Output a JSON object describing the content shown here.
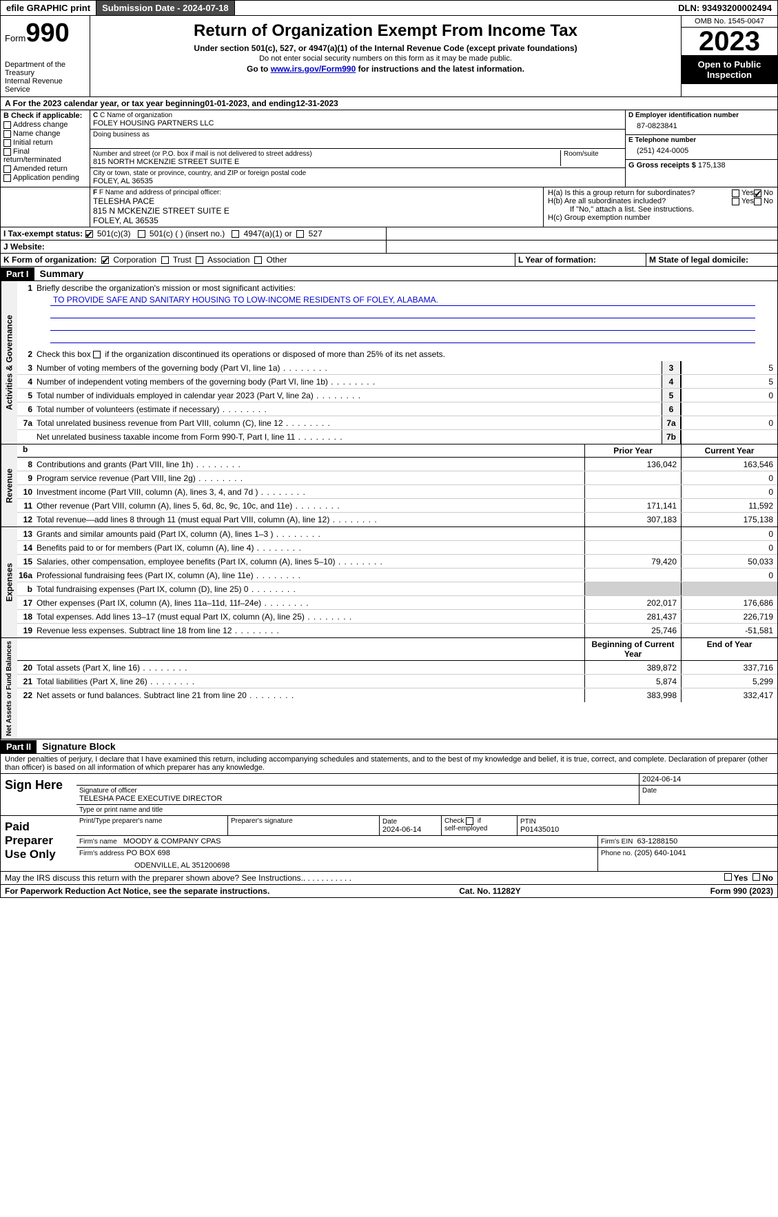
{
  "topbar": {
    "efile": "efile GRAPHIC print",
    "submission_label": "Submission Date - 2024-07-18",
    "dln_label": "DLN: 93493200002494"
  },
  "header": {
    "form_word": "Form",
    "form_num": "990",
    "dept": "Department of the Treasury",
    "irs": "Internal Revenue Service",
    "title": "Return of Organization Exempt From Income Tax",
    "sub1": "Under section 501(c), 527, or 4947(a)(1) of the Internal Revenue Code (except private foundations)",
    "sub2": "Do not enter social security numbers on this form as it may be made public.",
    "sub3_pre": "Go to ",
    "sub3_link": "www.irs.gov/Form990",
    "sub3_post": " for instructions and the latest information.",
    "omb": "OMB No. 1545-0047",
    "year": "2023",
    "open": "Open to Public Inspection"
  },
  "period": {
    "text_a": "A For the 2023 calendar year, or tax year beginning ",
    "begin": "01-01-2023",
    "mid": " , and ending ",
    "end": "12-31-2023"
  },
  "secB": {
    "title": "B Check if applicable:",
    "opts": [
      "Address change",
      "Name change",
      "Initial return",
      "Final return/terminated",
      "Amended return",
      "Application pending"
    ]
  },
  "secC": {
    "name_lbl": "C Name of organization",
    "name": "FOLEY HOUSING PARTNERS LLC",
    "dba_lbl": "Doing business as",
    "street_lbl": "Number and street (or P.O. box if mail is not delivered to street address)",
    "street": "815 NORTH MCKENZIE STREET SUITE E",
    "room_lbl": "Room/suite",
    "city_lbl": "City or town, state or province, country, and ZIP or foreign postal code",
    "city": "FOLEY, AL  36535"
  },
  "secD": {
    "lbl": "D Employer identification number",
    "val": "87-0823841"
  },
  "secE": {
    "lbl": "E Telephone number",
    "val": "(251) 424-0005"
  },
  "secG": {
    "lbl": "G Gross receipts $ ",
    "val": "175,138"
  },
  "secF": {
    "lbl": "F  Name and address of principal officer:",
    "name": "TELESHA PACE",
    "addr1": "815 N MCKENZIE STREET SUITE E",
    "addr2": "FOLEY, AL  36535"
  },
  "secH": {
    "a": "H(a)  Is this a group return for subordinates?",
    "b": "H(b)  Are all subordinates included?",
    "b_note": "If \"No,\" attach a list. See instructions.",
    "c": "H(c)  Group exemption number",
    "yes": "Yes",
    "no": "No"
  },
  "secI": {
    "lbl": "I   Tax-exempt status:",
    "o1": "501(c)(3)",
    "o2": "501(c) (  ) (insert no.)",
    "o3": "4947(a)(1) or",
    "o4": "527"
  },
  "secJ": {
    "lbl": "J   Website:"
  },
  "secK": {
    "lbl": "K Form of organization:",
    "o1": "Corporation",
    "o2": "Trust",
    "o3": "Association",
    "o4": "Other"
  },
  "secL": {
    "lbl": "L Year of formation:"
  },
  "secM": {
    "lbl": "M State of legal domicile:"
  },
  "part1": {
    "hdr": "Part I",
    "title": "Summary",
    "l1_lbl": "Briefly describe the organization's mission or most significant activities:",
    "l1_val": "TO PROVIDE SAFE AND SANITARY HOUSING TO LOW-INCOME RESIDENTS OF FOLEY, ALABAMA.",
    "l2": "Check this box       if the organization discontinued its operations or disposed of more than 25% of its net assets.",
    "gov": [
      {
        "n": "3",
        "d": "Number of voting members of the governing body (Part VI, line 1a)",
        "b": "3",
        "v": "5"
      },
      {
        "n": "4",
        "d": "Number of independent voting members of the governing body (Part VI, line 1b)",
        "b": "4",
        "v": "5"
      },
      {
        "n": "5",
        "d": "Total number of individuals employed in calendar year 2023 (Part V, line 2a)",
        "b": "5",
        "v": "0"
      },
      {
        "n": "6",
        "d": "Total number of volunteers (estimate if necessary)",
        "b": "6",
        "v": ""
      },
      {
        "n": "7a",
        "d": "Total unrelated business revenue from Part VIII, column (C), line 12",
        "b": "7a",
        "v": "0"
      },
      {
        "n": "",
        "d": "Net unrelated business taxable income from Form 990-T, Part I, line 11",
        "b": "7b",
        "v": ""
      }
    ],
    "col_prior": "Prior Year",
    "col_curr": "Current Year",
    "rev": [
      {
        "n": "8",
        "d": "Contributions and grants (Part VIII, line 1h)",
        "p": "136,042",
        "c": "163,546"
      },
      {
        "n": "9",
        "d": "Program service revenue (Part VIII, line 2g)",
        "p": "",
        "c": "0"
      },
      {
        "n": "10",
        "d": "Investment income (Part VIII, column (A), lines 3, 4, and 7d )",
        "p": "",
        "c": "0"
      },
      {
        "n": "11",
        "d": "Other revenue (Part VIII, column (A), lines 5, 6d, 8c, 9c, 10c, and 11e)",
        "p": "171,141",
        "c": "11,592"
      },
      {
        "n": "12",
        "d": "Total revenue—add lines 8 through 11 (must equal Part VIII, column (A), line 12)",
        "p": "307,183",
        "c": "175,138"
      }
    ],
    "exp": [
      {
        "n": "13",
        "d": "Grants and similar amounts paid (Part IX, column (A), lines 1–3 )",
        "p": "",
        "c": "0"
      },
      {
        "n": "14",
        "d": "Benefits paid to or for members (Part IX, column (A), line 4)",
        "p": "",
        "c": "0"
      },
      {
        "n": "15",
        "d": "Salaries, other compensation, employee benefits (Part IX, column (A), lines 5–10)",
        "p": "79,420",
        "c": "50,033"
      },
      {
        "n": "16a",
        "d": "Professional fundraising fees (Part IX, column (A), line 11e)",
        "p": "",
        "c": "0"
      },
      {
        "n": "b",
        "d": "Total fundraising expenses (Part IX, column (D), line 25) 0",
        "p": "grey",
        "c": "grey"
      },
      {
        "n": "17",
        "d": "Other expenses (Part IX, column (A), lines 11a–11d, 11f–24e)",
        "p": "202,017",
        "c": "176,686"
      },
      {
        "n": "18",
        "d": "Total expenses. Add lines 13–17 (must equal Part IX, column (A), line 25)",
        "p": "281,437",
        "c": "226,719"
      },
      {
        "n": "19",
        "d": "Revenue less expenses. Subtract line 18 from line 12",
        "p": "25,746",
        "c": "-51,581"
      }
    ],
    "col_begin": "Beginning of Current Year",
    "col_end": "End of Year",
    "net": [
      {
        "n": "20",
        "d": "Total assets (Part X, line 16)",
        "p": "389,872",
        "c": "337,716"
      },
      {
        "n": "21",
        "d": "Total liabilities (Part X, line 26)",
        "p": "5,874",
        "c": "5,299"
      },
      {
        "n": "22",
        "d": "Net assets or fund balances. Subtract line 21 from line 20",
        "p": "383,998",
        "c": "332,417"
      }
    ],
    "vlab_gov": "Activities & Governance",
    "vlab_rev": "Revenue",
    "vlab_exp": "Expenses",
    "vlab_net": "Net Assets or Fund Balances"
  },
  "part2": {
    "hdr": "Part II",
    "title": "Signature Block",
    "decl": "Under penalties of perjury, I declare that I have examined this return, including accompanying schedules and statements, and to the best of my knowledge and belief, it is true, correct, and complete. Declaration of preparer (other than officer) is based on all information of which preparer has any knowledge."
  },
  "sign": {
    "here": "Sign Here",
    "sig_lbl": "Signature of officer",
    "officer": "TELESHA PACE  EXECUTIVE DIRECTOR",
    "type_lbl": "Type or print name and title",
    "date_lbl": "Date",
    "date": "2024-06-14"
  },
  "paid": {
    "title": "Paid Preparer Use Only",
    "name_lbl": "Print/Type preparer's name",
    "sig_lbl": "Preparer's signature",
    "date_lbl": "Date",
    "date": "2024-06-14",
    "check_lbl": "Check         if self-employed",
    "ptin_lbl": "PTIN",
    "ptin": "P01435010",
    "firm_name_lbl": "Firm's name",
    "firm_name": "MOODY & COMPANY CPAS",
    "firm_ein_lbl": "Firm's EIN",
    "firm_ein": "63-1288150",
    "firm_addr_lbl": "Firm's address",
    "firm_addr1": "PO BOX 698",
    "firm_addr2": "ODENVILLE, AL  351200698",
    "phone_lbl": "Phone no.",
    "phone": "(205) 640-1041"
  },
  "discuss": {
    "q": "May the IRS discuss this return with the preparer shown above? See Instructions.",
    "yes": "Yes",
    "no": "No"
  },
  "footer": {
    "left": "For Paperwork Reduction Act Notice, see the separate instructions.",
    "mid": "Cat. No. 11282Y",
    "right_a": "Form ",
    "right_b": "990",
    "right_c": " (2023)"
  }
}
